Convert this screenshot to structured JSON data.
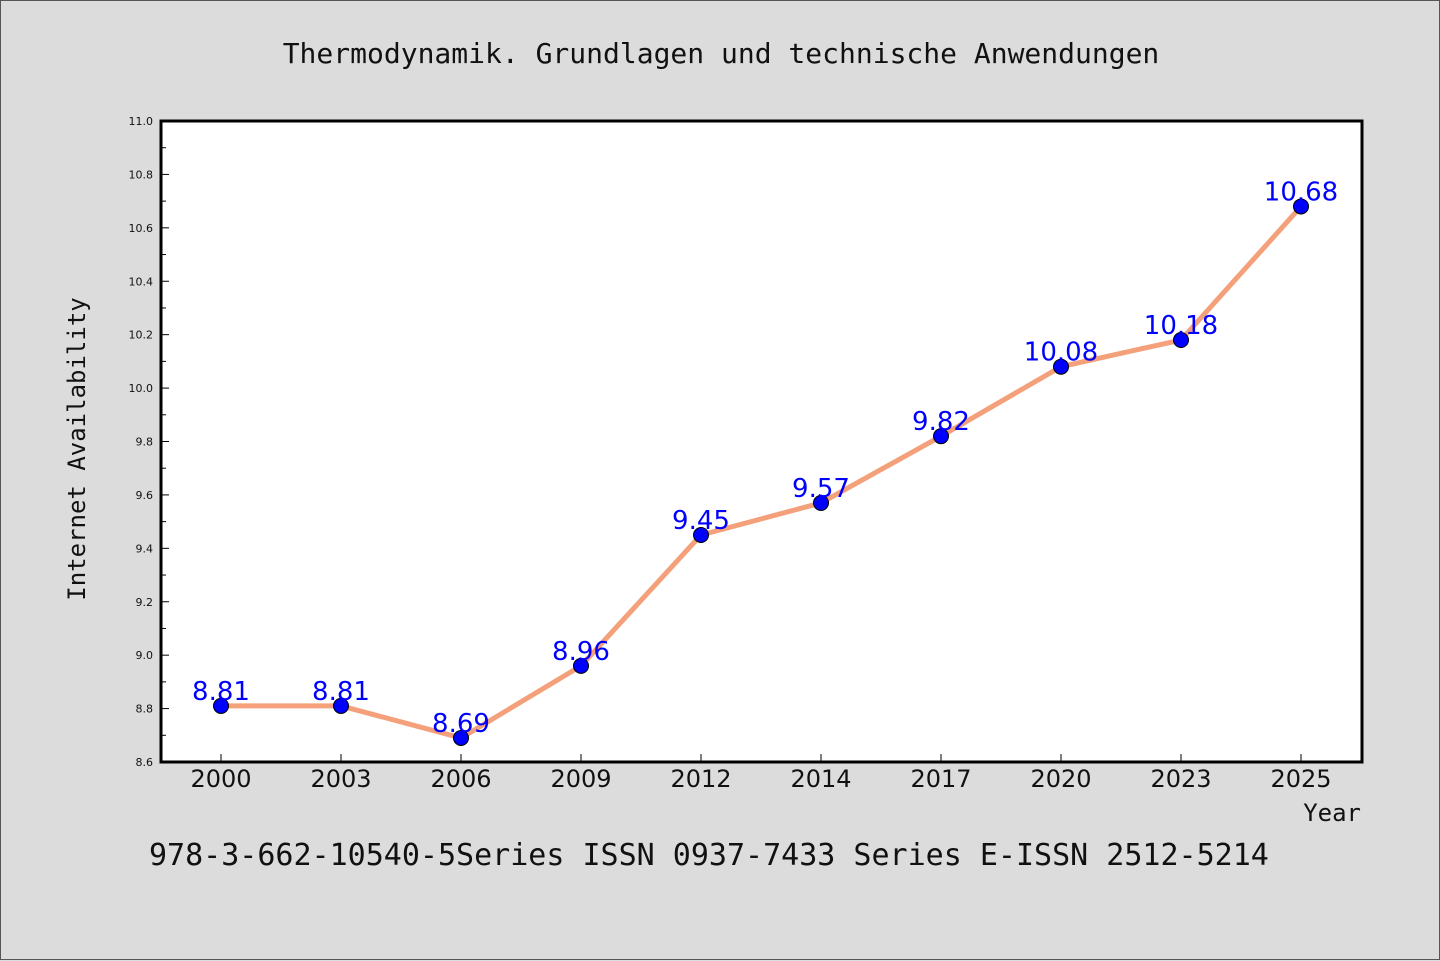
{
  "chart_data": {
    "type": "line",
    "title": "Thermodynamik. Grundlagen und technische Anwendungen",
    "xlabel": "Year",
    "ylabel": "Internet Availability",
    "categories": [
      "2000",
      "2003",
      "2006",
      "2009",
      "2012",
      "2014",
      "2017",
      "2020",
      "2023",
      "2025"
    ],
    "series": [
      {
        "values": [
          8.81,
          8.81,
          8.69,
          8.96,
          9.45,
          9.57,
          9.82,
          10.08,
          10.18,
          10.68
        ],
        "data_labels": [
          "8.81",
          "8.81",
          "8.69",
          "8.96",
          "9.45",
          "9.57",
          "9.82",
          "10.08",
          "10.18",
          "10.68"
        ],
        "line_color": "#f4a07a",
        "marker_color": "#0000ff"
      }
    ],
    "ylim": [
      8.6,
      11.0
    ],
    "yticks": [
      "8.6",
      "8.8",
      "9.0",
      "9.2",
      "9.4",
      "9.6",
      "9.8",
      "10.0",
      "10.2",
      "10.4",
      "10.6",
      "10.8",
      "11.0"
    ],
    "grid": false,
    "legend": false
  },
  "footer": {
    "text": "978-3-662-10540-5Series ISSN 0937-7433 Series E-ISSN 2512-5214"
  },
  "colors": {
    "background": "#dcdcdc",
    "plot_background": "#ffffff",
    "line": "#f4a07a",
    "marker": "#0000ff",
    "data_label": "#0000ff"
  }
}
